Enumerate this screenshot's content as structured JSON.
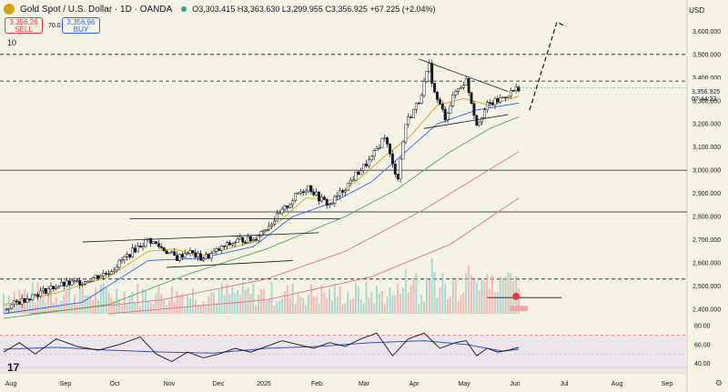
{
  "header": {
    "title": "Gold Spot / U.S. Dollar · 1D · OANDA",
    "ohlc": "O3,303.415 H3,363.630 L3,299.955 C3,356.925 +67.225 (+2.04%)",
    "sell_price": "3,356.26",
    "sell_label": "SELL",
    "buy_price": "3,356.96",
    "buy_label": "BUY",
    "spread": "70.0",
    "indicator": "10",
    "currency": "USD"
  },
  "colors": {
    "background": "#f5f2e6",
    "up": "#26a69a",
    "down": "#ef5350",
    "ma_fast": "#d9a316",
    "ma_blue": "#2962ff",
    "ma_green": "#4caf50",
    "ma_red": "#e57373",
    "rsi_line": "#131722",
    "rsi_ma": "#3b4ec9"
  },
  "icons": {
    "logo": "gold-coin-icon",
    "settings": "gear-icon",
    "brand": "tradingview-logo-icon"
  },
  "chart_data": {
    "type": "candlestick",
    "x_ticks": [
      "Aug",
      "Sep",
      "Oct",
      "Nov",
      "Dec",
      "2025",
      "Feb",
      "Mar",
      "Apr",
      "May",
      "Jun",
      "Jul",
      "Aug",
      "Sep"
    ],
    "y_ticks": [
      "3,600.000",
      "3,500.000",
      "3,400.000",
      "3,300.000",
      "3,200.000",
      "3,100.000",
      "3,000.000",
      "2,900.000",
      "2,800.000",
      "2,700.000",
      "2,600.000",
      "2,500.000",
      "2,400.000"
    ],
    "ylim": [
      2380,
      3680
    ],
    "last_price": "3,356.925",
    "countdown": "07:44:23",
    "horizontal_levels": [
      3500,
      3385,
      3000,
      2820,
      2530
    ],
    "close_path": [
      [
        0,
        2400
      ],
      [
        10,
        2455
      ],
      [
        20,
        2500
      ],
      [
        30,
        2520
      ],
      [
        40,
        2560
      ],
      [
        50,
        2660
      ],
      [
        55,
        2700
      ],
      [
        58,
        2680
      ],
      [
        62,
        2650
      ],
      [
        66,
        2620
      ],
      [
        70,
        2650
      ],
      [
        75,
        2620
      ],
      [
        78,
        2630
      ],
      [
        84,
        2670
      ],
      [
        90,
        2700
      ],
      [
        95,
        2700
      ],
      [
        100,
        2755
      ],
      [
        106,
        2820
      ],
      [
        112,
        2900
      ],
      [
        116,
        2930
      ],
      [
        120,
        2880
      ],
      [
        124,
        2850
      ],
      [
        128,
        2900
      ],
      [
        134,
        2980
      ],
      [
        140,
        3050
      ],
      [
        145,
        3150
      ],
      [
        148,
        3020
      ],
      [
        150,
        2970
      ],
      [
        153,
        3200
      ],
      [
        158,
        3300
      ],
      [
        162,
        3450
      ],
      [
        164,
        3330
      ],
      [
        168,
        3230
      ],
      [
        172,
        3340
      ],
      [
        176,
        3390
      ],
      [
        180,
        3200
      ],
      [
        184,
        3280
      ],
      [
        188,
        3300
      ],
      [
        192,
        3330
      ],
      [
        196,
        3357
      ]
    ],
    "ma_fast": [
      [
        0,
        2420
      ],
      [
        20,
        2470
      ],
      [
        40,
        2540
      ],
      [
        55,
        2650
      ],
      [
        65,
        2660
      ],
      [
        75,
        2630
      ],
      [
        85,
        2660
      ],
      [
        95,
        2690
      ],
      [
        105,
        2780
      ],
      [
        115,
        2880
      ],
      [
        125,
        2870
      ],
      [
        135,
        2960
      ],
      [
        145,
        3060
      ],
      [
        155,
        3150
      ],
      [
        165,
        3280
      ],
      [
        175,
        3310
      ],
      [
        185,
        3280
      ],
      [
        196,
        3320
      ]
    ],
    "ma_blue": [
      [
        0,
        2380
      ],
      [
        30,
        2430
      ],
      [
        55,
        2610
      ],
      [
        75,
        2620
      ],
      [
        95,
        2670
      ],
      [
        110,
        2800
      ],
      [
        125,
        2860
      ],
      [
        140,
        2950
      ],
      [
        155,
        3100
      ],
      [
        165,
        3200
      ],
      [
        180,
        3260
      ],
      [
        196,
        3290
      ]
    ],
    "ma_green": [
      [
        0,
        2360
      ],
      [
        40,
        2420
      ],
      [
        70,
        2550
      ],
      [
        100,
        2660
      ],
      [
        130,
        2800
      ],
      [
        150,
        2920
      ],
      [
        170,
        3080
      ],
      [
        185,
        3180
      ],
      [
        196,
        3230
      ]
    ],
    "ma_red": [
      [
        10,
        2380
      ],
      [
        60,
        2440
      ],
      [
        100,
        2530
      ],
      [
        130,
        2650
      ],
      [
        160,
        2830
      ],
      [
        196,
        3080
      ]
    ],
    "ma_red2": [
      [
        40,
        2380
      ],
      [
        100,
        2440
      ],
      [
        140,
        2540
      ],
      [
        170,
        2680
      ],
      [
        196,
        2880
      ]
    ],
    "rsi": {
      "ylim": [
        30,
        80
      ],
      "y_ticks": [
        "80.00",
        "60.00",
        "40.00"
      ],
      "upper": 70,
      "lower": 30,
      "line": [
        [
          0,
          52
        ],
        [
          6,
          62
        ],
        [
          12,
          50
        ],
        [
          20,
          66
        ],
        [
          28,
          58
        ],
        [
          36,
          54
        ],
        [
          44,
          60
        ],
        [
          52,
          68
        ],
        [
          58,
          50
        ],
        [
          64,
          42
        ],
        [
          70,
          52
        ],
        [
          76,
          46
        ],
        [
          82,
          50
        ],
        [
          88,
          56
        ],
        [
          94,
          52
        ],
        [
          100,
          58
        ],
        [
          106,
          64
        ],
        [
          112,
          60
        ],
        [
          118,
          56
        ],
        [
          124,
          62
        ],
        [
          130,
          58
        ],
        [
          136,
          66
        ],
        [
          142,
          72
        ],
        [
          148,
          48
        ],
        [
          154,
          66
        ],
        [
          160,
          72
        ],
        [
          166,
          56
        ],
        [
          172,
          62
        ],
        [
          176,
          64
        ],
        [
          180,
          48
        ],
        [
          184,
          56
        ],
        [
          188,
          52
        ],
        [
          192,
          54
        ],
        [
          196,
          57
        ]
      ],
      "ma": [
        [
          0,
          55
        ],
        [
          20,
          57
        ],
        [
          40,
          54
        ],
        [
          60,
          52
        ],
        [
          80,
          51
        ],
        [
          100,
          56
        ],
        [
          120,
          58
        ],
        [
          140,
          62
        ],
        [
          160,
          64
        ],
        [
          176,
          60
        ],
        [
          190,
          53
        ],
        [
          196,
          55
        ]
      ]
    }
  }
}
